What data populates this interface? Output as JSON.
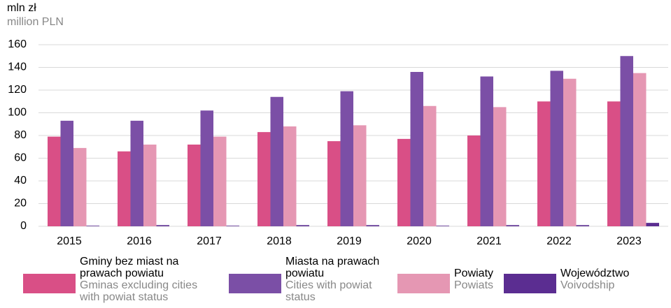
{
  "chart_data": {
    "type": "bar",
    "unit_label": "mln zł",
    "unit_label_en": "million PLN",
    "categories": [
      "2015",
      "2016",
      "2017",
      "2018",
      "2019",
      "2020",
      "2021",
      "2022",
      "2023"
    ],
    "series": [
      {
        "name": "Gminy bez miast na prawach powiatu",
        "name_en": "Gminas excluding cities with powiat status",
        "color": "#d94f86",
        "values": [
          79,
          66,
          72,
          83,
          75,
          77,
          80,
          110,
          110
        ]
      },
      {
        "name": "Miasta na prawach powiatu",
        "name_en": "Cities with powiat status",
        "color": "#7b4fa6",
        "values": [
          93,
          93,
          102,
          114,
          119,
          136,
          132,
          137,
          150
        ]
      },
      {
        "name": "Powiaty",
        "name_en": "Powiats",
        "color": "#e597b3",
        "values": [
          69,
          72,
          79,
          88,
          89,
          106,
          105,
          130,
          135
        ]
      },
      {
        "name": "Województwo",
        "name_en": "Voivodship",
        "color": "#5b2d91",
        "values": [
          0.5,
          1,
          0.5,
          1,
          1,
          0.5,
          1,
          1,
          3
        ]
      }
    ],
    "ylim": [
      0,
      160
    ],
    "yticks": [
      0,
      20,
      40,
      60,
      80,
      100,
      120,
      140,
      160
    ],
    "grid": true
  }
}
